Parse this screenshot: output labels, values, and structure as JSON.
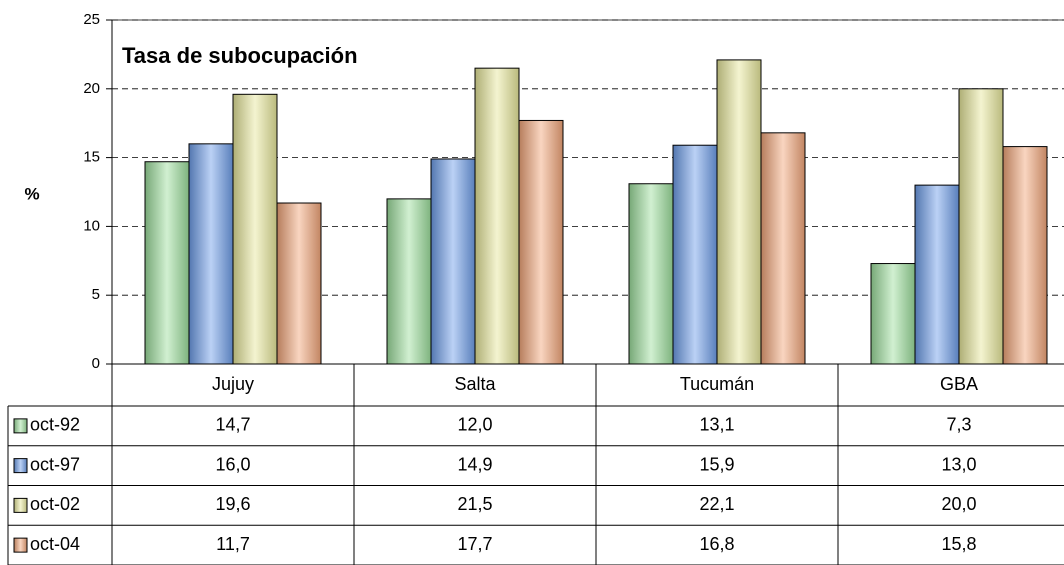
{
  "chart_data": {
    "type": "bar",
    "title": "Tasa de subocupación",
    "ylabel": "%",
    "categories": [
      "Jujuy",
      "Salta",
      "Tucumán",
      "GBA"
    ],
    "series": [
      {
        "name": "oct-92",
        "color": "#9ee09e",
        "values": [
          14.7,
          12.0,
          13.1,
          7.3
        ],
        "value_labels": [
          "14,7",
          "12,0",
          "13,1",
          "7,3"
        ]
      },
      {
        "name": "oct-97",
        "color": "#6f9fea",
        "values": [
          16.0,
          14.9,
          15.9,
          13.0
        ],
        "value_labels": [
          "16,0",
          "14,9",
          "15,9",
          "13,0"
        ]
      },
      {
        "name": "oct-02",
        "color": "#e8e89c",
        "values": [
          19.6,
          21.5,
          22.1,
          20.0
        ],
        "value_labels": [
          "19,6",
          "21,5",
          "22,1",
          "20,0"
        ]
      },
      {
        "name": "oct-04",
        "color": "#f2a67a",
        "values": [
          11.7,
          17.7,
          16.8,
          15.8
        ],
        "value_labels": [
          "11,7",
          "17,7",
          "16,8",
          "15,8"
        ]
      }
    ],
    "ylim": [
      0,
      25
    ],
    "yticks": [
      0,
      5,
      10,
      15,
      20,
      25
    ],
    "grid": true
  }
}
